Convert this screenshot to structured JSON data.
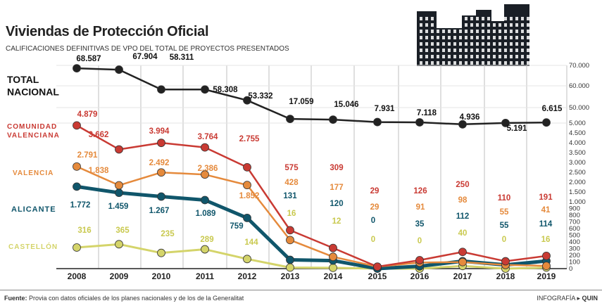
{
  "title": "Viviendas de Protección Oficial",
  "subtitle": "CALIFICACIONES DEFINITIVAS DE VPO DEL TOTAL DE  PROYECTOS PRESENTADOS",
  "source_label": "Fuente:",
  "source_text": "Provia con datos oficiales de los planes nacionales y de los de la Generalitat",
  "credit_prefix": "INFOGRAFÍA",
  "credit_arrow": "▸",
  "credit_name": "QUIN",
  "icon": "building-silhouette-icon",
  "chart_data": {
    "type": "line",
    "x": [
      "2008",
      "2009",
      "2010",
      "2011",
      "2012",
      "2013",
      "2014",
      "2015",
      "2016",
      "2017",
      "2018",
      "2019"
    ],
    "y_scale": "piecewise",
    "y_ticks": [
      {
        "v": 0,
        "label": "0"
      },
      {
        "v": 100,
        "label": "100"
      },
      {
        "v": 200,
        "label": "200"
      },
      {
        "v": 300,
        "label": "300"
      },
      {
        "v": 400,
        "label": "400"
      },
      {
        "v": 500,
        "label": "500"
      },
      {
        "v": 600,
        "label": "600"
      },
      {
        "v": 700,
        "label": "700"
      },
      {
        "v": 800,
        "label": "800"
      },
      {
        "v": 900,
        "label": "900"
      },
      {
        "v": 1000,
        "label": "1.000"
      },
      {
        "v": 1500,
        "label": "1.500"
      },
      {
        "v": 2000,
        "label": "2.000"
      },
      {
        "v": 2500,
        "label": "2.500"
      },
      {
        "v": 3000,
        "label": "3.000"
      },
      {
        "v": 3500,
        "label": "3.500"
      },
      {
        "v": 4000,
        "label": "4.000"
      },
      {
        "v": 4500,
        "label": "4.500"
      },
      {
        "v": 5000,
        "label": "5.000"
      },
      {
        "v": 50000,
        "label": "50.000"
      },
      {
        "v": 60000,
        "label": "60.000"
      },
      {
        "v": 70000,
        "label": "70.000"
      }
    ],
    "series": [
      {
        "name": "TOTAL NACIONAL",
        "color": "#222222",
        "values": [
          68587,
          67904,
          58311,
          58308,
          53332,
          17059,
          15046,
          7931,
          7118,
          4936,
          5191,
          6615
        ],
        "labels": [
          "68.587",
          "67.904",
          "58.311",
          "58.308",
          "53.332",
          "17.059",
          "15.046",
          "7.931",
          "7.118",
          "4.936",
          "5.191",
          "6.615"
        ]
      },
      {
        "name": "COMUNIDAD VALENCIANA",
        "color": "#c93a33",
        "values": [
          4879,
          3662,
          3994,
          3764,
          2755,
          575,
          309,
          29,
          126,
          250,
          110,
          191
        ],
        "labels": [
          "4.879",
          "3.662",
          "3.994",
          "3.764",
          "2.755",
          "575",
          "309",
          "29",
          "126",
          "250",
          "110",
          "191"
        ]
      },
      {
        "name": "VALENCIA",
        "color": "#e58a3c",
        "values": [
          2791,
          1838,
          2492,
          2386,
          1852,
          428,
          177,
          29,
          91,
          98,
          55,
          41
        ],
        "labels": [
          "2.791",
          "1.838",
          "2.492",
          "2.386",
          "1.852",
          "428",
          "177",
          "29",
          "91",
          "98",
          "55",
          "41"
        ]
      },
      {
        "name": "ALICANTE",
        "color": "#10566b",
        "values": [
          1772,
          1459,
          1267,
          1089,
          759,
          131,
          120,
          0,
          35,
          112,
          55,
          114
        ],
        "labels": [
          "1.772",
          "1.459",
          "1.267",
          "1.089",
          "759",
          "131",
          "120",
          "0",
          "35",
          "112",
          "55",
          "114"
        ]
      },
      {
        "name": "CASTELLÓN",
        "color": "#d4d46a",
        "values": [
          316,
          365,
          235,
          289,
          144,
          16,
          12,
          0,
          0,
          40,
          0,
          16
        ],
        "labels": [
          "316",
          "365",
          "235",
          "289",
          "144",
          "16",
          "12",
          "0",
          "0",
          "40",
          "0",
          "16"
        ]
      }
    ]
  }
}
